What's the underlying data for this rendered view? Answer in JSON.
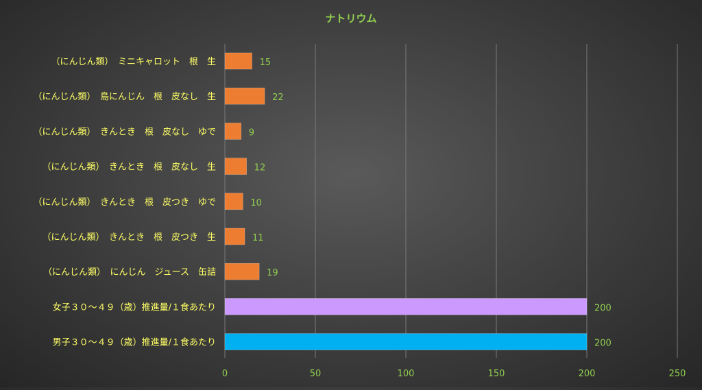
{
  "chart_data": {
    "type": "bar",
    "orientation": "horizontal",
    "title": "ナトリウム",
    "categories": [
      "（にんじん類）　ミニキャロット　根　生",
      "（にんじん類）　島にんじん　根　皮なし　生",
      "（にんじん類）　きんとき　根　皮なし　ゆで",
      "（にんじん類）　きんとき　根　皮なし　生",
      "（にんじん類）　きんとき　根　皮つき　ゆで",
      "（にんじん類）　きんとき　根　皮つき　生",
      "（にんじん類）　にんじん　ジュース　缶詰",
      "女子３０～４９（歳）推進量/１食あたり",
      "男子３０～４９（歳）推進量/１食あたり"
    ],
    "values": [
      15,
      22,
      9,
      12,
      10,
      11,
      19,
      200,
      200
    ],
    "colors": [
      "#ED7D31",
      "#ED7D31",
      "#ED7D31",
      "#ED7D31",
      "#ED7D31",
      "#ED7D31",
      "#ED7D31",
      "#CC99FF",
      "#00B0F0"
    ],
    "xlim": [
      0,
      250
    ],
    "xticks": [
      0,
      50,
      100,
      150,
      200,
      250
    ],
    "grid": "vertical",
    "legend": "none",
    "xlabel": "",
    "ylabel": ""
  },
  "colors": {
    "title": "#92D050",
    "category_label": "#FFFF66",
    "tick_label": "#92D050",
    "data_label": "#92D050",
    "grid": "#7a7a7a"
  }
}
